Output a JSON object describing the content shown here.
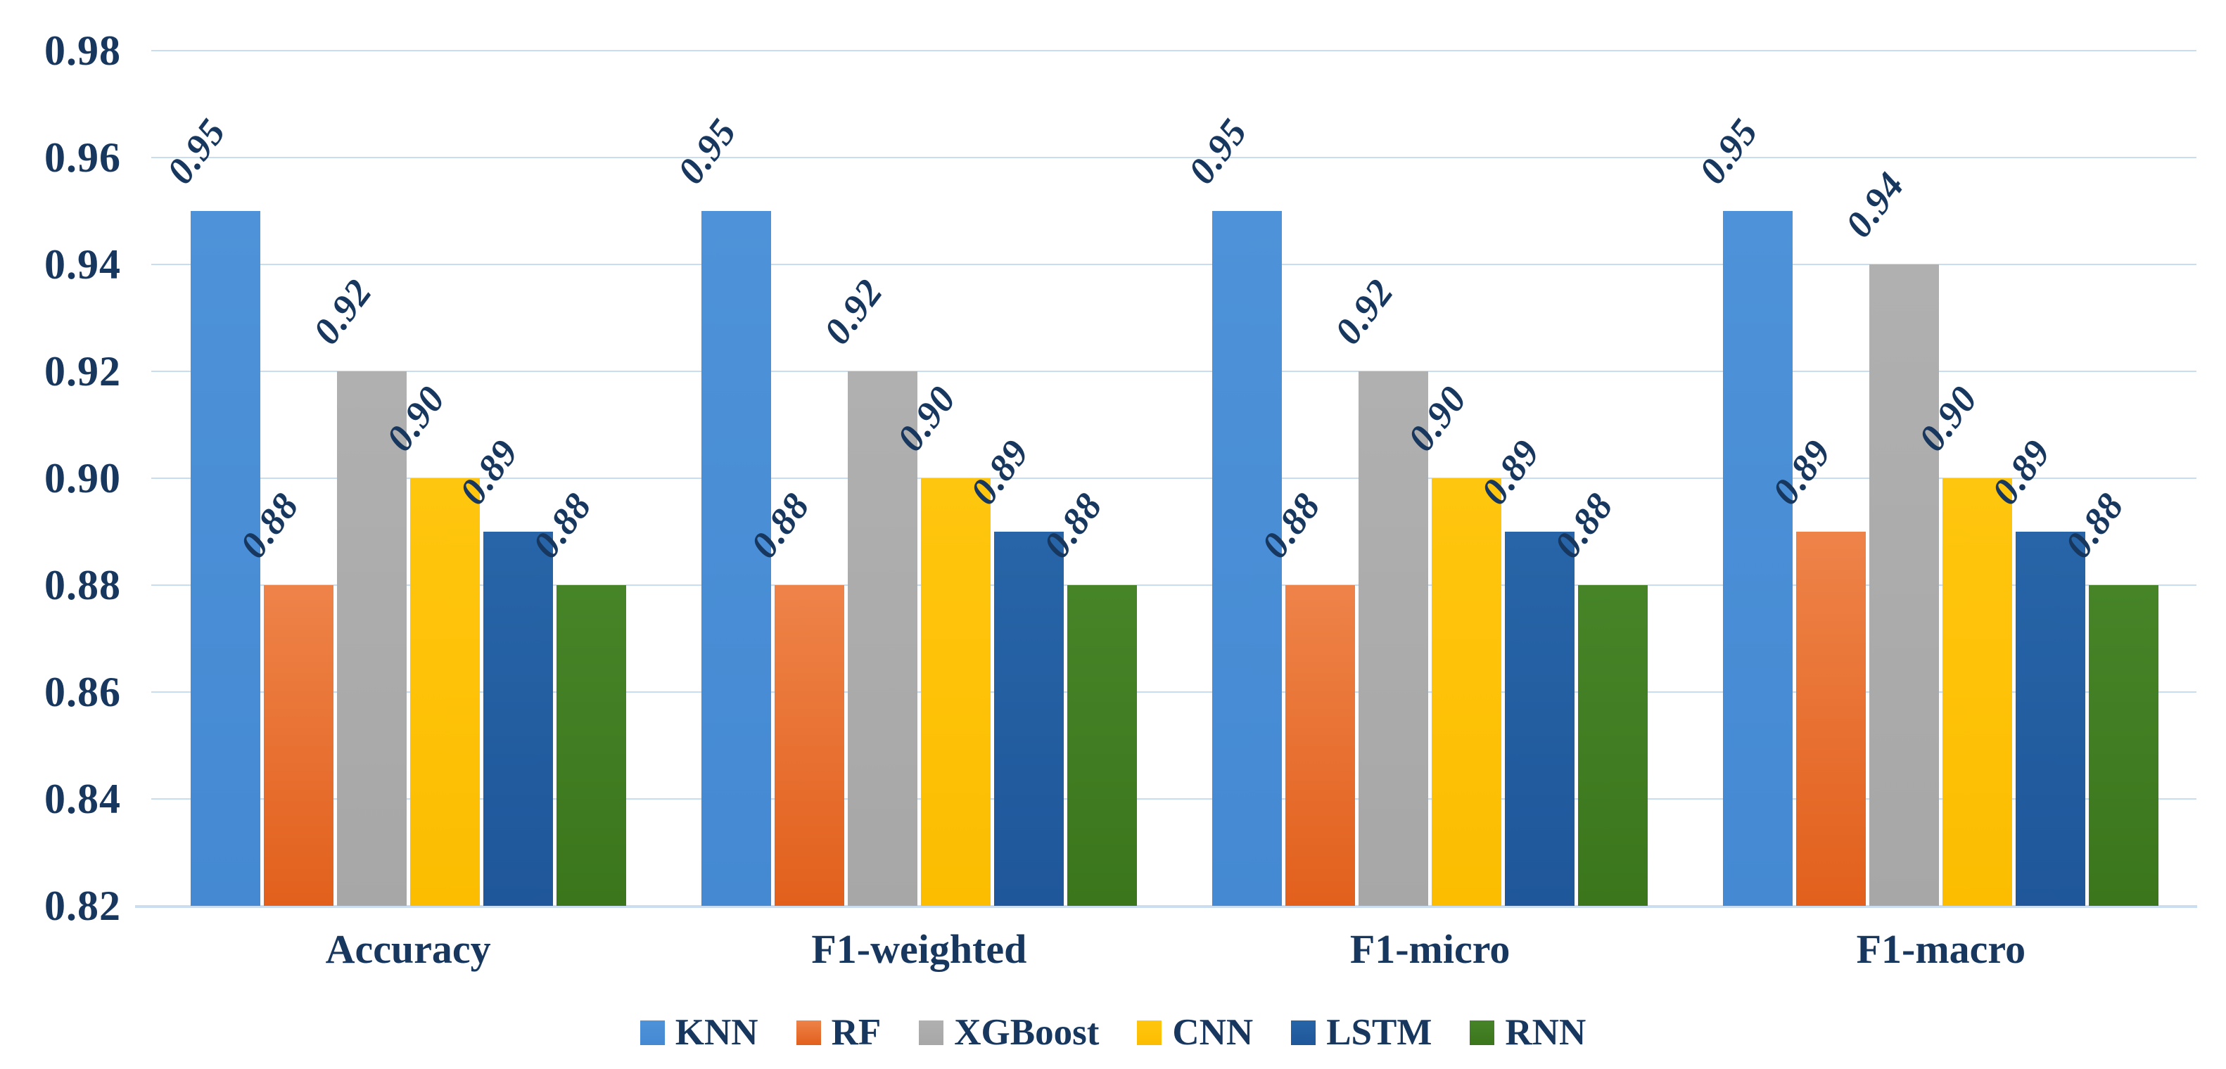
{
  "chart_data": {
    "type": "bar",
    "title": "",
    "xlabel": "",
    "ylabel": "",
    "categories": [
      "Accuracy",
      "F1-weighted",
      "F1-micro",
      "F1-macro"
    ],
    "series": [
      {
        "name": "KNN",
        "color": "#4E93D9",
        "color_dark": "#4489D2",
        "values": [
          0.95,
          0.95,
          0.95,
          0.95
        ]
      },
      {
        "name": "RF",
        "color": "#EE8349",
        "color_dark": "#E2601C",
        "values": [
          0.88,
          0.88,
          0.88,
          0.89
        ]
      },
      {
        "name": "XGBoost",
        "color": "#B0B0B0",
        "color_dark": "#A7A7A7",
        "values": [
          0.92,
          0.92,
          0.92,
          0.94
        ]
      },
      {
        "name": "CNN",
        "color": "#FFC60F",
        "color_dark": "#FCBD00",
        "values": [
          0.9,
          0.9,
          0.9,
          0.9
        ]
      },
      {
        "name": "LSTM",
        "color": "#2765A8",
        "color_dark": "#1F579A",
        "values": [
          0.89,
          0.89,
          0.89,
          0.89
        ]
      },
      {
        "name": "RNN",
        "color": "#478428",
        "color_dark": "#3B761C",
        "values": [
          0.88,
          0.88,
          0.88,
          0.88
        ]
      }
    ],
    "ylim": [
      0.82,
      0.98
    ],
    "yticks": [
      0.98,
      0.96,
      0.94,
      0.92,
      0.9,
      0.88,
      0.86,
      0.84,
      0.82
    ],
    "ytick_format": "0.00",
    "value_label_format": "0.00",
    "value_labels_rotated": true,
    "grid": "horizontal",
    "legend_position": "bottom",
    "colors": {
      "text": "#17375E",
      "gridline": "#C9DDF1",
      "axis_line": "#CBDDF0",
      "background": "#FFFFFF"
    }
  }
}
